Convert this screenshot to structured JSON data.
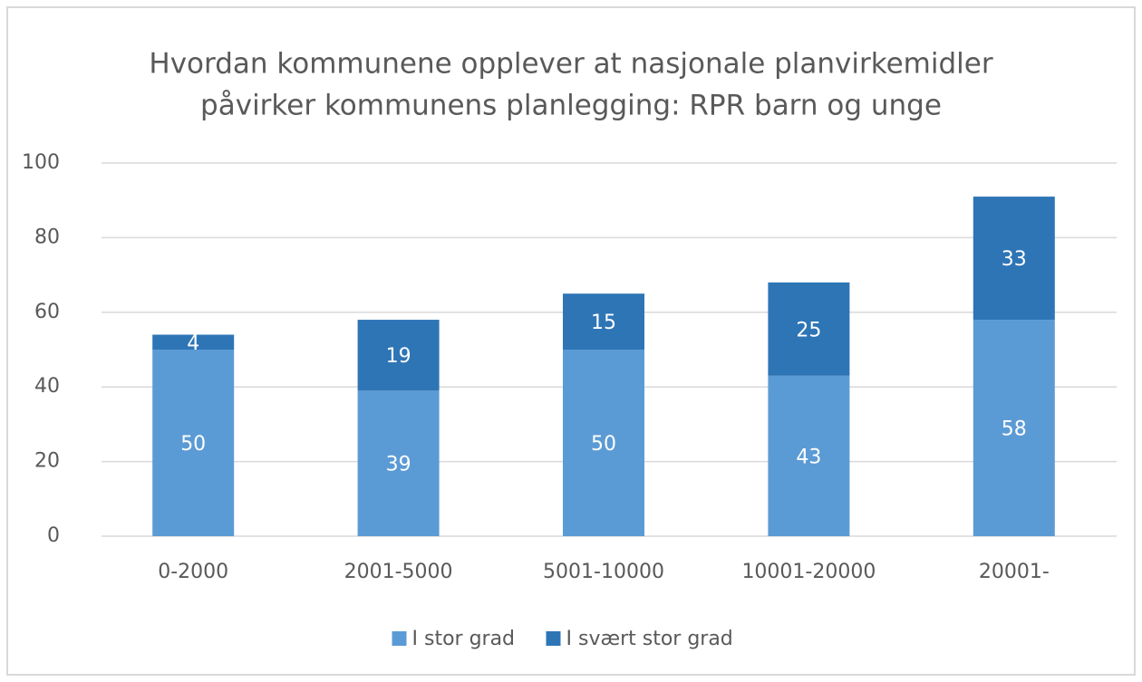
{
  "chart_data": {
    "type": "stacked_bar",
    "title": [
      "Hvordan kommunene opplever at nasjonale planvirkemidler",
      "påvirker kommunens planlegging: RPR barn og unge"
    ],
    "categories": [
      "0-2000",
      "2001-5000",
      "5001-10000",
      "10001-20000",
      "20001-"
    ],
    "series": [
      {
        "name": "I stor grad",
        "color": "#5b9bd5",
        "values": [
          50,
          39,
          50,
          43,
          58
        ]
      },
      {
        "name": "I svært stor grad",
        "color": "#2e75b6",
        "values": [
          4,
          19,
          15,
          25,
          33
        ]
      }
    ],
    "ylim": [
      0,
      100
    ],
    "yticks": [
      0,
      20,
      40,
      60,
      80,
      100
    ],
    "grid": true,
    "legend": "bottom"
  }
}
